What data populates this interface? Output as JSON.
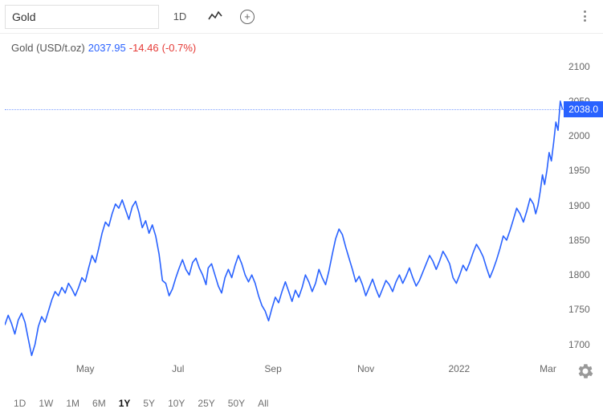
{
  "toolbar": {
    "search_value": "Gold",
    "interval_label": "1D"
  },
  "info": {
    "label": "Gold (USD/t.oz)",
    "price": "2037.95",
    "change_abs": "-14.46",
    "change_pct": "(-0.7%)"
  },
  "chart": {
    "type": "line",
    "line_color": "#2962ff",
    "line_width": 1.6,
    "background_color": "#ffffff",
    "current_price_label": "2038.0",
    "ylim": [
      1680,
      2110
    ],
    "yticks": [
      1700,
      1750,
      1800,
      1850,
      1900,
      1950,
      2000,
      2050,
      2100
    ],
    "xlabels": [
      {
        "t": 0.144,
        "label": "May"
      },
      {
        "t": 0.31,
        "label": "Jul"
      },
      {
        "t": 0.48,
        "label": "Sep"
      },
      {
        "t": 0.646,
        "label": "Nov"
      },
      {
        "t": 0.813,
        "label": "2022"
      },
      {
        "t": 0.972,
        "label": "Mar"
      }
    ],
    "series": [
      [
        0.0,
        1728
      ],
      [
        0.006,
        1742
      ],
      [
        0.012,
        1730
      ],
      [
        0.018,
        1715
      ],
      [
        0.024,
        1735
      ],
      [
        0.03,
        1745
      ],
      [
        0.036,
        1732
      ],
      [
        0.042,
        1708
      ],
      [
        0.048,
        1684
      ],
      [
        0.054,
        1700
      ],
      [
        0.06,
        1726
      ],
      [
        0.066,
        1740
      ],
      [
        0.072,
        1732
      ],
      [
        0.078,
        1748
      ],
      [
        0.084,
        1764
      ],
      [
        0.09,
        1776
      ],
      [
        0.096,
        1770
      ],
      [
        0.102,
        1782
      ],
      [
        0.108,
        1774
      ],
      [
        0.114,
        1788
      ],
      [
        0.12,
        1780
      ],
      [
        0.126,
        1770
      ],
      [
        0.132,
        1782
      ],
      [
        0.138,
        1796
      ],
      [
        0.144,
        1790
      ],
      [
        0.15,
        1810
      ],
      [
        0.156,
        1828
      ],
      [
        0.162,
        1818
      ],
      [
        0.168,
        1838
      ],
      [
        0.174,
        1860
      ],
      [
        0.18,
        1876
      ],
      [
        0.186,
        1870
      ],
      [
        0.192,
        1888
      ],
      [
        0.198,
        1902
      ],
      [
        0.204,
        1896
      ],
      [
        0.21,
        1908
      ],
      [
        0.216,
        1894
      ],
      [
        0.222,
        1880
      ],
      [
        0.228,
        1898
      ],
      [
        0.234,
        1906
      ],
      [
        0.24,
        1890
      ],
      [
        0.246,
        1868
      ],
      [
        0.252,
        1878
      ],
      [
        0.258,
        1860
      ],
      [
        0.264,
        1872
      ],
      [
        0.27,
        1856
      ],
      [
        0.276,
        1830
      ],
      [
        0.282,
        1792
      ],
      [
        0.288,
        1788
      ],
      [
        0.294,
        1770
      ],
      [
        0.3,
        1780
      ],
      [
        0.306,
        1796
      ],
      [
        0.312,
        1810
      ],
      [
        0.318,
        1822
      ],
      [
        0.324,
        1808
      ],
      [
        0.33,
        1800
      ],
      [
        0.336,
        1818
      ],
      [
        0.342,
        1824
      ],
      [
        0.348,
        1810
      ],
      [
        0.354,
        1800
      ],
      [
        0.36,
        1786
      ],
      [
        0.364,
        1810
      ],
      [
        0.37,
        1816
      ],
      [
        0.376,
        1800
      ],
      [
        0.382,
        1784
      ],
      [
        0.388,
        1774
      ],
      [
        0.394,
        1796
      ],
      [
        0.4,
        1808
      ],
      [
        0.406,
        1796
      ],
      [
        0.412,
        1814
      ],
      [
        0.418,
        1828
      ],
      [
        0.424,
        1816
      ],
      [
        0.43,
        1800
      ],
      [
        0.436,
        1790
      ],
      [
        0.442,
        1800
      ],
      [
        0.448,
        1788
      ],
      [
        0.454,
        1770
      ],
      [
        0.46,
        1756
      ],
      [
        0.466,
        1748
      ],
      [
        0.472,
        1734
      ],
      [
        0.478,
        1752
      ],
      [
        0.484,
        1768
      ],
      [
        0.49,
        1760
      ],
      [
        0.496,
        1776
      ],
      [
        0.502,
        1790
      ],
      [
        0.508,
        1776
      ],
      [
        0.514,
        1762
      ],
      [
        0.52,
        1778
      ],
      [
        0.526,
        1768
      ],
      [
        0.532,
        1782
      ],
      [
        0.538,
        1800
      ],
      [
        0.544,
        1790
      ],
      [
        0.55,
        1776
      ],
      [
        0.556,
        1788
      ],
      [
        0.562,
        1808
      ],
      [
        0.568,
        1796
      ],
      [
        0.574,
        1786
      ],
      [
        0.58,
        1806
      ],
      [
        0.586,
        1830
      ],
      [
        0.592,
        1852
      ],
      [
        0.598,
        1866
      ],
      [
        0.604,
        1858
      ],
      [
        0.61,
        1840
      ],
      [
        0.616,
        1824
      ],
      [
        0.622,
        1808
      ],
      [
        0.628,
        1790
      ],
      [
        0.634,
        1798
      ],
      [
        0.64,
        1786
      ],
      [
        0.646,
        1770
      ],
      [
        0.652,
        1782
      ],
      [
        0.658,
        1794
      ],
      [
        0.664,
        1780
      ],
      [
        0.67,
        1768
      ],
      [
        0.676,
        1780
      ],
      [
        0.682,
        1792
      ],
      [
        0.688,
        1786
      ],
      [
        0.694,
        1776
      ],
      [
        0.7,
        1790
      ],
      [
        0.706,
        1800
      ],
      [
        0.712,
        1788
      ],
      [
        0.718,
        1798
      ],
      [
        0.724,
        1810
      ],
      [
        0.73,
        1796
      ],
      [
        0.736,
        1784
      ],
      [
        0.742,
        1792
      ],
      [
        0.748,
        1804
      ],
      [
        0.754,
        1816
      ],
      [
        0.76,
        1828
      ],
      [
        0.766,
        1820
      ],
      [
        0.772,
        1808
      ],
      [
        0.778,
        1820
      ],
      [
        0.784,
        1834
      ],
      [
        0.79,
        1826
      ],
      [
        0.796,
        1816
      ],
      [
        0.802,
        1796
      ],
      [
        0.808,
        1788
      ],
      [
        0.814,
        1800
      ],
      [
        0.82,
        1814
      ],
      [
        0.826,
        1806
      ],
      [
        0.832,
        1818
      ],
      [
        0.838,
        1832
      ],
      [
        0.844,
        1844
      ],
      [
        0.85,
        1836
      ],
      [
        0.856,
        1826
      ],
      [
        0.862,
        1810
      ],
      [
        0.868,
        1796
      ],
      [
        0.874,
        1808
      ],
      [
        0.88,
        1822
      ],
      [
        0.886,
        1838
      ],
      [
        0.892,
        1856
      ],
      [
        0.898,
        1850
      ],
      [
        0.904,
        1864
      ],
      [
        0.91,
        1880
      ],
      [
        0.916,
        1896
      ],
      [
        0.922,
        1888
      ],
      [
        0.928,
        1876
      ],
      [
        0.934,
        1892
      ],
      [
        0.94,
        1910
      ],
      [
        0.946,
        1902
      ],
      [
        0.95,
        1888
      ],
      [
        0.954,
        1900
      ],
      [
        0.958,
        1920
      ],
      [
        0.962,
        1944
      ],
      [
        0.966,
        1930
      ],
      [
        0.97,
        1950
      ],
      [
        0.974,
        1976
      ],
      [
        0.978,
        1964
      ],
      [
        0.982,
        1990
      ],
      [
        0.986,
        2020
      ],
      [
        0.99,
        2008
      ],
      [
        0.994,
        2050
      ],
      [
        0.998,
        2038
      ]
    ]
  },
  "ranges": {
    "options": [
      "1D",
      "1W",
      "1M",
      "6M",
      "1Y",
      "5Y",
      "10Y",
      "25Y",
      "50Y",
      "All"
    ],
    "active": "1Y"
  }
}
